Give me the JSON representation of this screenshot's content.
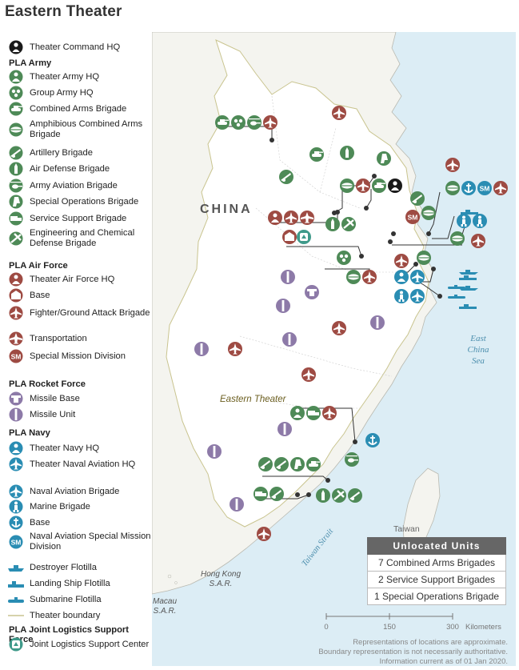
{
  "title": "Eastern Theater",
  "colors": {
    "army": "#4e8a57",
    "air_force": "#9e4b43",
    "rocket_force": "#8d7aa8",
    "navy": "#2a8db3",
    "logistics": "#3f9a8a",
    "command": "#1a1a1a",
    "sea": "#dcedf5",
    "land": "#ffffff",
    "outside_land": "#f1f1ec"
  },
  "legend": {
    "command": {
      "label": "Theater Command HQ",
      "icon": "command-hq-icon"
    },
    "army": {
      "heading": "PLA Army",
      "items": [
        {
          "label": "Theater Army HQ",
          "icon": "theater-army-hq-icon"
        },
        {
          "label": "Group Army HQ",
          "icon": "group-army-hq-icon"
        },
        {
          "label": "Combined Arms Brigade",
          "icon": "tank-icon"
        },
        {
          "label": "Amphibious Combined Arms Brigade",
          "icon": "amphibious-tank-icon"
        },
        {
          "label": "Artillery Brigade",
          "icon": "artillery-icon"
        },
        {
          "label": "Air Defense Brigade",
          "icon": "air-defense-icon"
        },
        {
          "label": "Army Aviation Brigade",
          "icon": "helicopter-icon"
        },
        {
          "label": "Special Operations Brigade",
          "icon": "special-ops-icon"
        },
        {
          "label": "Service Support Brigade",
          "icon": "truck-icon"
        },
        {
          "label": "Engineering and Chemical Defense Brigade",
          "icon": "engineering-icon"
        }
      ]
    },
    "air_force": {
      "heading": "PLA Air Force",
      "items": [
        {
          "label": "Theater Air Force HQ",
          "icon": "theater-air-force-hq-icon"
        },
        {
          "label": "Base",
          "icon": "air-base-icon"
        },
        {
          "label": "Fighter/Ground Attack Brigade",
          "icon": "fighter-jet-icon"
        },
        {
          "label": "Transportation",
          "icon": "transport-plane-icon"
        },
        {
          "label": "Special Mission Division",
          "icon": "sm-icon",
          "badge": "SM"
        }
      ]
    },
    "rocket_force": {
      "heading": "PLA Rocket Force",
      "items": [
        {
          "label": "Missile Base",
          "icon": "missile-base-icon"
        },
        {
          "label": "Missile Unit",
          "icon": "missile-unit-icon"
        }
      ]
    },
    "navy": {
      "heading": "PLA Navy",
      "items": [
        {
          "label": "Theater Navy HQ",
          "icon": "theater-navy-hq-icon"
        },
        {
          "label": "Theater Naval Aviation HQ",
          "icon": "naval-aviation-hq-icon"
        },
        {
          "label": "Naval Aviation Brigade",
          "icon": "naval-aviation-icon"
        },
        {
          "label": "Marine Brigade",
          "icon": "marine-icon"
        },
        {
          "label": "Base",
          "icon": "anchor-icon"
        },
        {
          "label": "Naval Aviation Special Mission Division",
          "icon": "naval-sm-icon",
          "badge": "SM"
        },
        {
          "label": "Destroyer Flotilla",
          "icon": "destroyer-icon"
        },
        {
          "label": "Landing Ship Flotilla",
          "icon": "landing-ship-icon"
        },
        {
          "label": "Submarine Flotilla",
          "icon": "submarine-icon"
        },
        {
          "label": "Theater boundary",
          "icon": "boundary-line-icon"
        }
      ]
    },
    "logistics": {
      "heading": "PLA Joint Logistics Support Force",
      "items": [
        {
          "label": "Joint Logistics Support Center",
          "icon": "logistics-center-icon"
        }
      ]
    }
  },
  "map": {
    "country_label": "CHINA",
    "region_label": "Eastern Theater",
    "sea_label_lines": [
      "East",
      "China",
      "Sea"
    ],
    "strait_label": "Taiwan Strait",
    "taiwan_label": "Taiwan",
    "hongkong_label_lines": [
      "Hong Kong",
      "S.A.R."
    ],
    "macau_label_lines": [
      "Macau",
      "S.A.R."
    ]
  },
  "unlocated": {
    "heading": "Unlocated Units",
    "items": [
      "7 Combined Arms Brigades",
      "2 Service Support Brigades",
      "1 Special Operations Brigade"
    ]
  },
  "scale": {
    "ticks": [
      "0",
      "150",
      "300"
    ],
    "unit": "Kilometers"
  },
  "notes": [
    "Representations of locations are approximate.",
    "Boundary representation is not necessarily authoritative.",
    "Information current as of 01 Jan 2020."
  ]
}
